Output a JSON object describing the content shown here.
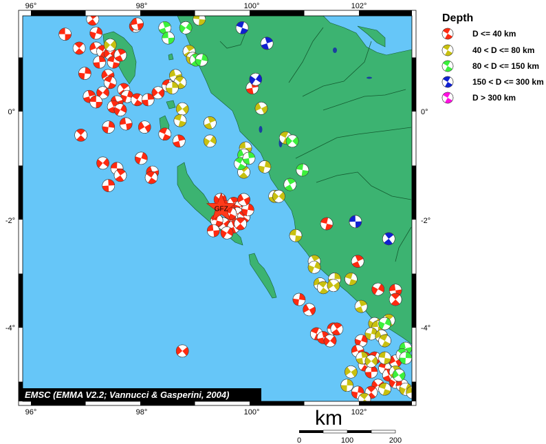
{
  "map": {
    "credit": "EMSC (EMMA V2.2; Vannucci & Gasperini, 2004)",
    "marker_label": "GFZ",
    "marker": {
      "lon": 99.4,
      "lat": -1.8
    },
    "lon_ticks": [
      "96°",
      "98°",
      "100°",
      "102°"
    ],
    "lat_ticks": [
      "0°",
      "-2°",
      "-4°"
    ],
    "colors": {
      "sea": "#66c6f8",
      "land": "#3cb371",
      "lake": "#1a3fa0"
    }
  },
  "legend": {
    "title": "Depth",
    "items": [
      {
        "label": "D <= 40 km",
        "color": "#ff2a10"
      },
      {
        "label": "40 < D <= 80 km",
        "color": "#c8c010"
      },
      {
        "label": "80 < D <= 150 km",
        "color": "#3cf03c"
      },
      {
        "label": "150 < D <= 300 km",
        "color": "#1020d0"
      },
      {
        "label": "D > 300 km",
        "color": "#ff10e0"
      }
    ]
  },
  "scalebar": {
    "unit": "km",
    "labels": [
      "0",
      "100",
      "200"
    ]
  },
  "events": {
    "depth_class_1": [
      [
        96.63,
        1.44
      ],
      [
        97.12,
        1.72
      ],
      [
        97.18,
        1.46
      ],
      [
        97.18,
        1.18
      ],
      [
        97.3,
        1.12
      ],
      [
        97.24,
        0.92
      ],
      [
        97.43,
        1.08
      ],
      [
        97.49,
        0.92
      ],
      [
        97.61,
        1.05
      ],
      [
        97.88,
        1.59
      ],
      [
        97.91,
        1.63
      ],
      [
        96.88,
        1.18
      ],
      [
        96.98,
        0.71
      ],
      [
        97.39,
        0.67
      ],
      [
        97.43,
        0.54
      ],
      [
        97.06,
        0.28
      ],
      [
        97.3,
        0.35
      ],
      [
        97.18,
        0.18
      ],
      [
        97.67,
        0.41
      ],
      [
        97.73,
        0.28
      ],
      [
        97.55,
        0.18
      ],
      [
        97.91,
        0.22
      ],
      [
        98.1,
        0.22
      ],
      [
        98.28,
        0.35
      ],
      [
        98.46,
        0.48
      ],
      [
        97.49,
        0.09
      ],
      [
        97.61,
        0.03
      ],
      [
        97.71,
        -0.23
      ],
      [
        96.91,
        -0.44
      ],
      [
        97.4,
        -0.29
      ],
      [
        98.04,
        -0.29
      ],
      [
        98.4,
        -0.42
      ],
      [
        98.65,
        -0.55
      ],
      [
        97.3,
        -0.96
      ],
      [
        97.55,
        -1.06
      ],
      [
        97.61,
        -1.19
      ],
      [
        97.98,
        -0.87
      ],
      [
        98.18,
        -1.13
      ],
      [
        98.16,
        -1.23
      ],
      [
        97.4,
        -1.38
      ],
      [
        98.71,
        -4.46
      ],
      [
        101.27,
        -2.09
      ],
      [
        101.82,
        -2.79
      ],
      [
        102.18,
        -3.31
      ],
      [
        102.49,
        -3.33
      ],
      [
        102.49,
        -3.5
      ],
      [
        100.78,
        -3.5
      ],
      [
        100.96,
        -3.69
      ],
      [
        101.09,
        -4.14
      ],
      [
        101.21,
        -4.21
      ],
      [
        101.33,
        -4.27
      ],
      [
        101.39,
        -4.05
      ],
      [
        101.45,
        -4.05
      ],
      [
        101.88,
        -4.27
      ],
      [
        101.82,
        -4.46
      ],
      [
        101.94,
        -4.72
      ],
      [
        102.06,
        -4.85
      ],
      [
        102.18,
        -5.1
      ],
      [
        102.3,
        -4.78
      ],
      [
        102.37,
        -4.91
      ],
      [
        102.49,
        -5.04
      ],
      [
        102.61,
        -5.1
      ],
      [
        102.06,
        -5.23
      ],
      [
        101.82,
        -5.23
      ],
      [
        102.49,
        -4.65
      ],
      [
        102.12,
        -4.59
      ],
      [
        101.94,
        -4.59
      ],
      [
        99.38,
        -1.64
      ],
      [
        99.5,
        -1.77
      ],
      [
        99.62,
        -1.71
      ],
      [
        99.74,
        -1.77
      ],
      [
        99.68,
        -1.9
      ],
      [
        99.8,
        -1.96
      ],
      [
        99.56,
        -2.03
      ],
      [
        99.44,
        -2.09
      ],
      [
        99.32,
        -2.03
      ],
      [
        99.62,
        -2.15
      ],
      [
        99.5,
        -2.26
      ],
      [
        99.26,
        -2.22
      ],
      [
        99.74,
        -2.09
      ],
      [
        99.87,
        -1.83
      ],
      [
        99.8,
        -1.64
      ],
      [
        99.56,
        -1.9
      ],
      [
        99.95,
        0.44
      ]
    ],
    "depth_class_2": [
      [
        97.43,
        1.24
      ],
      [
        99.01,
        1.72
      ],
      [
        98.83,
        1.12
      ],
      [
        98.89,
        0.99
      ],
      [
        98.59,
        0.67
      ],
      [
        98.67,
        0.54
      ],
      [
        98.53,
        0.44
      ],
      [
        98.71,
        0.05
      ],
      [
        98.67,
        -0.17
      ],
      [
        99.2,
        -0.21
      ],
      [
        99.2,
        -0.55
      ],
      [
        99.83,
        -0.68
      ],
      [
        99.8,
        -1.13
      ],
      [
        100.17,
        -1.03
      ],
      [
        100.11,
        0.06
      ],
      [
        100.54,
        -0.49
      ],
      [
        100.35,
        -1.58
      ],
      [
        100.42,
        -1.58
      ],
      [
        100.72,
        -2.31
      ],
      [
        101.05,
        -2.79
      ],
      [
        101.05,
        -2.9
      ],
      [
        101.15,
        -3.21
      ],
      [
        101.21,
        -3.28
      ],
      [
        101.41,
        -3.12
      ],
      [
        101.39,
        -3.24
      ],
      [
        101.7,
        -3.12
      ],
      [
        101.88,
        -3.63
      ],
      [
        102.12,
        -3.95
      ],
      [
        102.18,
        -4.01
      ],
      [
        102.37,
        -3.89
      ],
      [
        102.06,
        -4.14
      ],
      [
        102.24,
        -4.18
      ],
      [
        102.3,
        -4.27
      ],
      [
        101.9,
        -4.59
      ],
      [
        102.06,
        -4.65
      ],
      [
        102.3,
        -4.59
      ],
      [
        102.49,
        -4.85
      ],
      [
        102.67,
        -5.17
      ],
      [
        102.79,
        -5.23
      ],
      [
        101.94,
        -5.36
      ],
      [
        101.63,
        -5.1
      ],
      [
        101.7,
        -4.85
      ],
      [
        102.3,
        -5.17
      ]
    ],
    "depth_class_3": [
      [
        98.4,
        1.56
      ],
      [
        98.77,
        1.56
      ],
      [
        98.46,
        1.37
      ],
      [
        98.95,
        0.96
      ],
      [
        99.05,
        0.96
      ],
      [
        99.8,
        -0.81
      ],
      [
        99.74,
        -0.97
      ],
      [
        99.89,
        -0.87
      ],
      [
        100.66,
        -0.55
      ],
      [
        100.84,
        -1.09
      ],
      [
        100.62,
        -1.36
      ],
      [
        102.3,
        -3.95
      ],
      [
        102.67,
        -4.41
      ],
      [
        102.61,
        -4.53
      ],
      [
        102.67,
        -4.59
      ],
      [
        102.55,
        -4.91
      ]
    ],
    "depth_class_4": [
      [
        99.77,
        1.56
      ],
      [
        100.21,
        1.27
      ],
      [
        100.01,
        0.6
      ],
      [
        101.78,
        -2.05
      ],
      [
        102.37,
        -2.37
      ]
    ],
    "depth_class_5": []
  }
}
